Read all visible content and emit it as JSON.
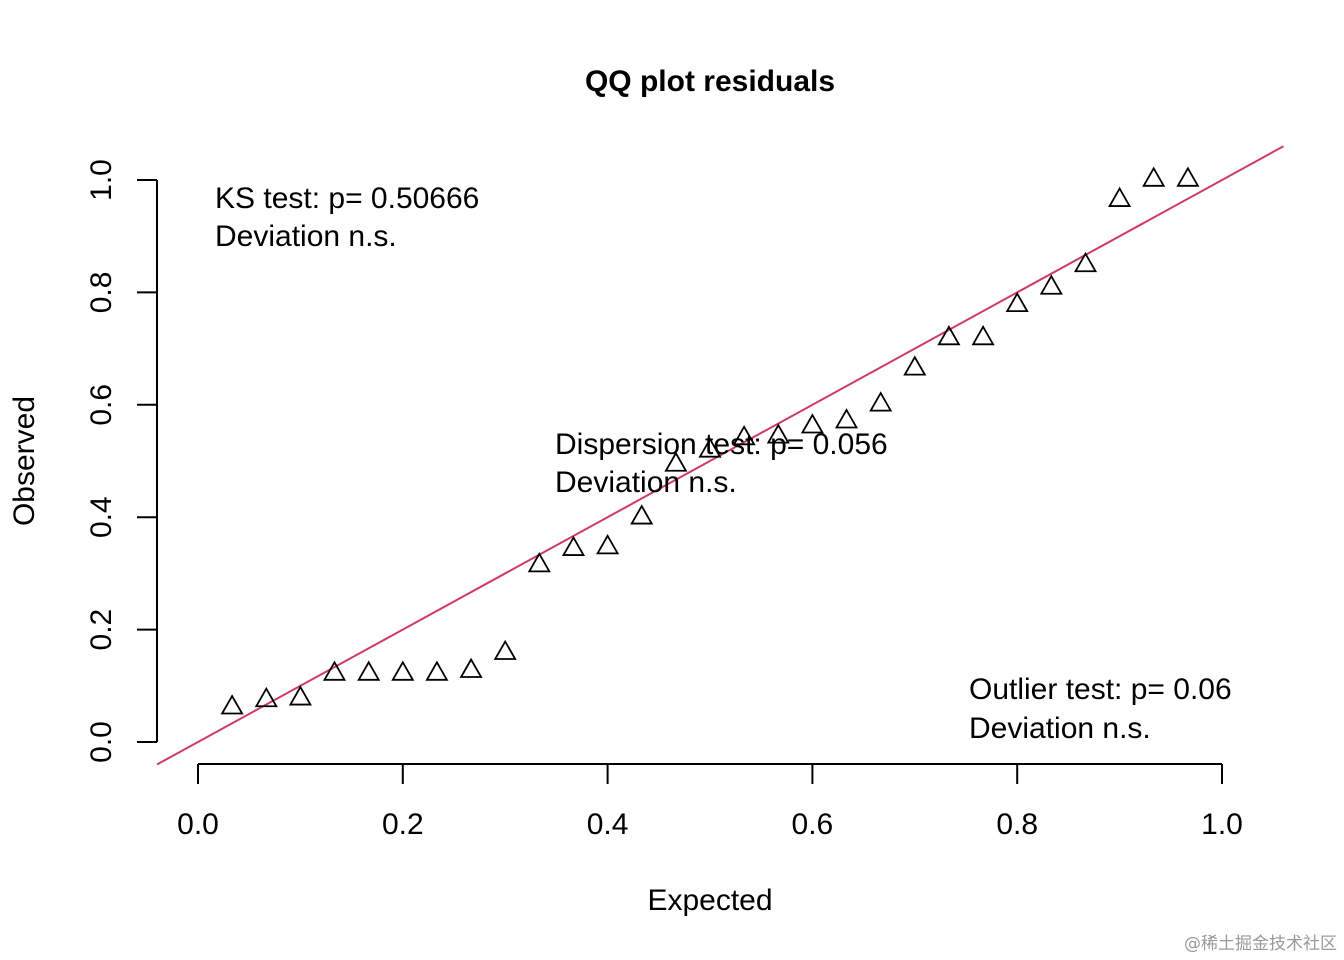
{
  "chart_data": {
    "type": "scatter",
    "title": "QQ plot residuals",
    "xlabel": "Expected",
    "ylabel": "Observed",
    "xlim": [
      -0.04,
      1.04
    ],
    "ylim": [
      -0.04,
      1.04
    ],
    "xticks": [
      "0.0",
      "0.2",
      "0.4",
      "0.6",
      "0.8",
      "1.0"
    ],
    "yticks": [
      "0.0",
      "0.2",
      "0.4",
      "0.6",
      "0.8",
      "1.0"
    ],
    "marker": "open-triangle",
    "grid": false,
    "reference_line": {
      "intercept": 0,
      "slope": 1,
      "color": "#CD3B63"
    },
    "points": [
      {
        "x": 0.0333,
        "y": 0.064
      },
      {
        "x": 0.0667,
        "y": 0.077
      },
      {
        "x": 0.1,
        "y": 0.08
      },
      {
        "x": 0.1333,
        "y": 0.124
      },
      {
        "x": 0.1667,
        "y": 0.124
      },
      {
        "x": 0.2,
        "y": 0.124
      },
      {
        "x": 0.2333,
        "y": 0.124
      },
      {
        "x": 0.2667,
        "y": 0.129
      },
      {
        "x": 0.3,
        "y": 0.161
      },
      {
        "x": 0.3333,
        "y": 0.317
      },
      {
        "x": 0.3667,
        "y": 0.346
      },
      {
        "x": 0.4,
        "y": 0.349
      },
      {
        "x": 0.4333,
        "y": 0.402
      },
      {
        "x": 0.4667,
        "y": 0.496
      },
      {
        "x": 0.5,
        "y": 0.521
      },
      {
        "x": 0.5333,
        "y": 0.543
      },
      {
        "x": 0.5667,
        "y": 0.546
      },
      {
        "x": 0.6,
        "y": 0.564
      },
      {
        "x": 0.6333,
        "y": 0.573
      },
      {
        "x": 0.6667,
        "y": 0.603
      },
      {
        "x": 0.7,
        "y": 0.667
      },
      {
        "x": 0.7333,
        "y": 0.721
      },
      {
        "x": 0.7667,
        "y": 0.721
      },
      {
        "x": 0.8,
        "y": 0.78
      },
      {
        "x": 0.8333,
        "y": 0.811
      },
      {
        "x": 0.8667,
        "y": 0.851
      },
      {
        "x": 0.9,
        "y": 0.967
      },
      {
        "x": 0.9333,
        "y": 1.003
      },
      {
        "x": 0.9667,
        "y": 1.003
      }
    ],
    "annotations": {
      "ks_line1": "KS test: p= 0.50666",
      "ks_line2": "Deviation  n.s.",
      "dispersion_line1": "Dispersion test: p= 0.056",
      "dispersion_line2": "Deviation  n.s.",
      "outlier_line1": "Outlier test: p= 0.06",
      "outlier_line2": "Deviation  n.s."
    }
  },
  "watermark": "@稀土掘金技术社区"
}
